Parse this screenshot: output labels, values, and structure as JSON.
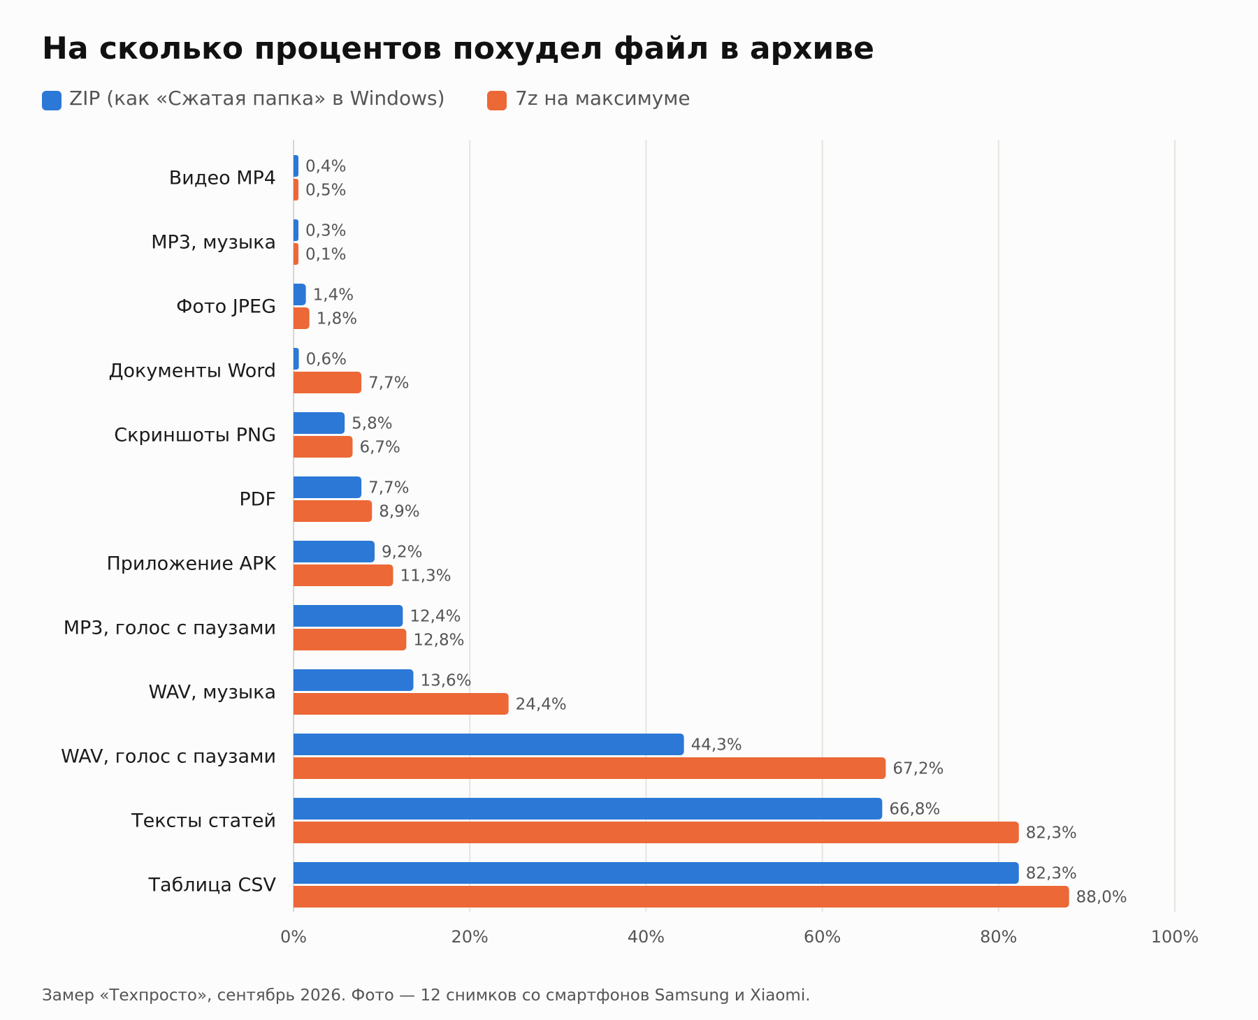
{
  "chart_data": {
    "type": "bar",
    "orientation": "horizontal",
    "title": "На сколько процентов похудел файл в архиве",
    "categories": [
      "Видео MP4",
      "MP3, музыка",
      "Фото JPEG",
      "Документы Word",
      "Скриншоты PNG",
      "PDF",
      "Приложение APK",
      "MP3, голос с паузами",
      "WAV, музыка",
      "WAV, голос с паузами",
      "Тексты статей",
      "Таблица CSV"
    ],
    "series": [
      {
        "name": "ZIP (как «Сжатая папка» в Windows)",
        "color": "#2b78d6",
        "values": [
          0.4,
          0.3,
          1.4,
          0.6,
          5.8,
          7.7,
          9.2,
          12.4,
          13.6,
          44.3,
          66.8,
          82.3
        ],
        "labels": [
          "0,4%",
          "0,3%",
          "1,4%",
          "0,6%",
          "5,8%",
          "7,7%",
          "9,2%",
          "12,4%",
          "13,6%",
          "44,3%",
          "66,8%",
          "82,3%"
        ]
      },
      {
        "name": "7z на максимуме",
        "color": "#ec6836",
        "values": [
          0.5,
          0.1,
          1.8,
          7.7,
          6.7,
          8.9,
          11.3,
          12.8,
          24.4,
          67.2,
          82.3,
          88.0
        ],
        "labels": [
          "0,5%",
          "0,1%",
          "1,8%",
          "7,7%",
          "6,7%",
          "8,9%",
          "11,3%",
          "12,8%",
          "24,4%",
          "67,2%",
          "82,3%",
          "88,0%"
        ]
      }
    ],
    "xlim": [
      0,
      100
    ],
    "xticks": [
      0,
      20,
      40,
      60,
      80,
      100
    ],
    "xtick_labels": [
      "0%",
      "20%",
      "40%",
      "60%",
      "80%",
      "100%"
    ],
    "grid": "vertical",
    "legend": "top-left"
  },
  "footer": {
    "source": "Замер «Техпросто», сентябрь 2026. Фото — 12 снимков со смартфонов Samsung и Xiaomi."
  }
}
